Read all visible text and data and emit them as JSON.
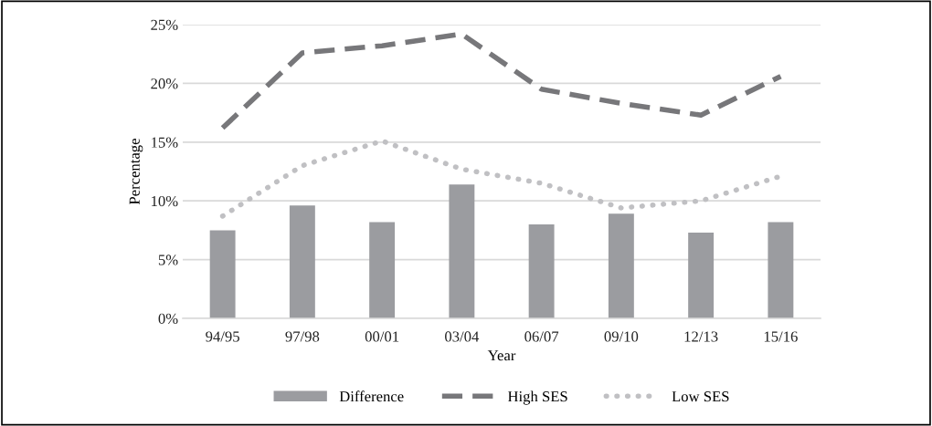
{
  "chart_data": {
    "type": "bar",
    "xlabel": "Year",
    "ylabel": "Percentage",
    "categories": [
      "94/95",
      "97/98",
      "00/01",
      "03/04",
      "06/07",
      "09/10",
      "12/13",
      "15/16"
    ],
    "series": [
      {
        "name": "Difference",
        "color": "#9b9ca0",
        "values": [
          7.5,
          9.6,
          8.2,
          11.4,
          8.0,
          8.9,
          7.3,
          8.2
        ]
      },
      {
        "name": "High SES",
        "type": "line",
        "line_style": "dashed",
        "color": "#77777a",
        "values": [
          16.2,
          22.6,
          23.2,
          24.2,
          19.5,
          18.3,
          17.3,
          20.6
        ]
      },
      {
        "name": "Low SES",
        "type": "line",
        "line_style": "dotted",
        "color": "#c0c0c3",
        "values": [
          8.7,
          13.0,
          15.1,
          12.7,
          11.5,
          9.4,
          10.0,
          12.1
        ]
      }
    ],
    "ylim": [
      0,
      25
    ],
    "yticks": [
      {
        "value": 0,
        "label": "0%"
      },
      {
        "value": 5,
        "label": "5%"
      },
      {
        "value": 10,
        "label": "10%"
      },
      {
        "value": 15,
        "label": "15%"
      },
      {
        "value": 20,
        "label": "20%"
      },
      {
        "value": 25,
        "label": "25%"
      }
    ],
    "grid": "y",
    "legend": "bottom",
    "marker": "none"
  }
}
